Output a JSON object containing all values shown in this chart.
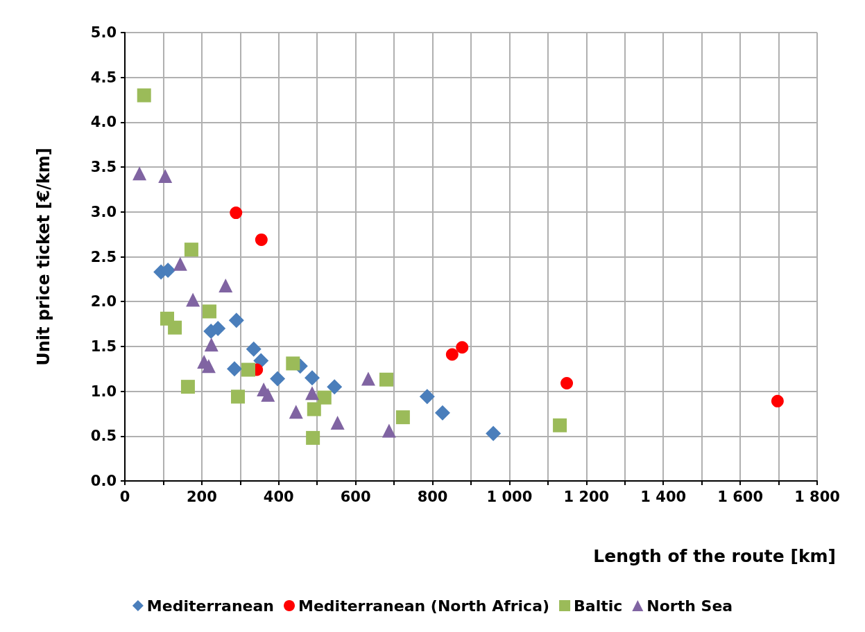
{
  "chart_data": {
    "type": "scatter",
    "xlabel": "Length of the route [km]",
    "ylabel": "Unit price ticket [€/km]",
    "xlim": [
      0,
      1800
    ],
    "xticks": [
      0,
      {
        "value": 100,
        "label": null
      },
      200,
      {
        "value": 300,
        "label": null
      },
      400,
      {
        "value": 500,
        "label": null
      },
      600,
      {
        "value": 700,
        "label": null
      },
      800,
      {
        "value": 900,
        "label": null
      },
      {
        "value": 1000,
        "label": "1 000"
      },
      {
        "value": 1100,
        "label": null
      },
      {
        "value": 1200,
        "label": "1 200"
      },
      {
        "value": 1300,
        "label": null
      },
      {
        "value": 1400,
        "label": "1 400"
      },
      {
        "value": 1500,
        "label": null
      },
      {
        "value": 1600,
        "label": "1 600"
      },
      {
        "value": 1700,
        "label": null
      },
      {
        "value": 1800,
        "label": "1 800"
      }
    ],
    "ylim": [
      0,
      5
    ],
    "yticks": [
      {
        "value": 0,
        "label": "0.0"
      },
      {
        "value": 0.5,
        "label": "0.5"
      },
      {
        "value": 1,
        "label": "1.0"
      },
      {
        "value": 1.5,
        "label": "1.5"
      },
      {
        "value": 2,
        "label": "2.0"
      },
      {
        "value": 2.5,
        "label": "2.5"
      },
      {
        "value": 3,
        "label": "3.0"
      },
      {
        "value": 3.5,
        "label": "3.5"
      },
      {
        "value": 4,
        "label": "4.0"
      },
      {
        "value": 4.5,
        "label": "4.5"
      },
      {
        "value": 5,
        "label": "5.0"
      }
    ],
    "grid": true,
    "legend": "bottom",
    "series": [
      {
        "name": "Mediterranean",
        "color": "#4a7ebb",
        "marker": "diamond",
        "x": [
          94,
          112,
          224,
          242,
          290,
          285,
          335,
          354,
          397,
          456,
          487,
          545,
          786,
          826,
          958
        ],
        "values": [
          2.33,
          2.35,
          1.67,
          1.7,
          1.79,
          1.25,
          1.47,
          1.34,
          1.14,
          1.28,
          1.15,
          1.05,
          0.94,
          0.76,
          0.53
        ]
      },
      {
        "name": "Mediterranean (North Africa)",
        "color": "#ff0000",
        "marker": "circle",
        "x": [
          289,
          355,
          343,
          851,
          877,
          1149,
          1697
        ],
        "values": [
          2.99,
          2.69,
          1.24,
          1.41,
          1.49,
          1.09,
          0.89
        ]
      },
      {
        "name": "Baltic",
        "color": "#9bbb59",
        "marker": "square",
        "x": [
          50,
          173,
          110,
          130,
          220,
          164,
          294,
          321,
          437,
          519,
          492,
          489,
          680,
          723,
          1131
        ],
        "values": [
          4.3,
          2.58,
          1.81,
          1.71,
          1.89,
          1.05,
          0.94,
          1.24,
          1.31,
          0.93,
          0.8,
          0.48,
          1.13,
          0.71,
          0.62
        ]
      },
      {
        "name": "North Sea",
        "color": "#8064a2",
        "marker": "triangle",
        "x": [
          38,
          105,
          144,
          262,
          177,
          225,
          206,
          218,
          361,
          372,
          445,
          487,
          553,
          633,
          687
        ],
        "values": [
          3.43,
          3.4,
          2.42,
          2.18,
          2.02,
          1.52,
          1.33,
          1.28,
          1.02,
          0.96,
          0.77,
          0.98,
          0.65,
          1.14,
          0.56
        ]
      }
    ]
  }
}
